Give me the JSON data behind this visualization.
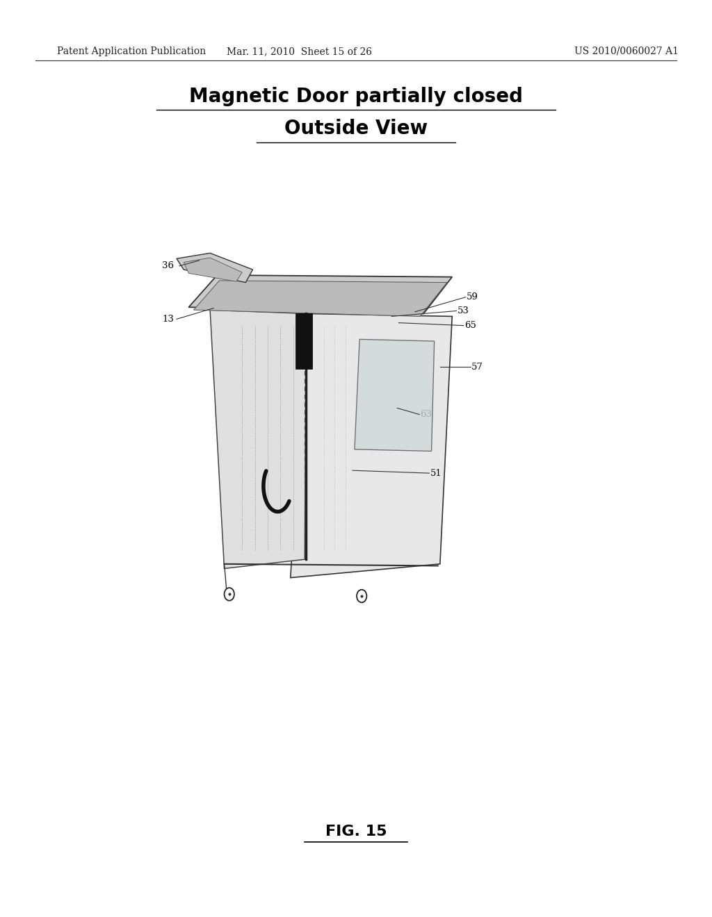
{
  "background_color": "#ffffff",
  "header_left": "Patent Application Publication",
  "header_mid": "Mar. 11, 2010  Sheet 15 of 26",
  "header_right": "US 2010/0060027 A1",
  "title_line1": "Magnetic Door partially closed",
  "title_line2": "Outside View",
  "figure_label": "FIG. 15",
  "header_fontsize": 10,
  "title_fontsize": 20,
  "fig_label_fontsize": 16,
  "line_color": "#333333",
  "text_color": "#000000"
}
